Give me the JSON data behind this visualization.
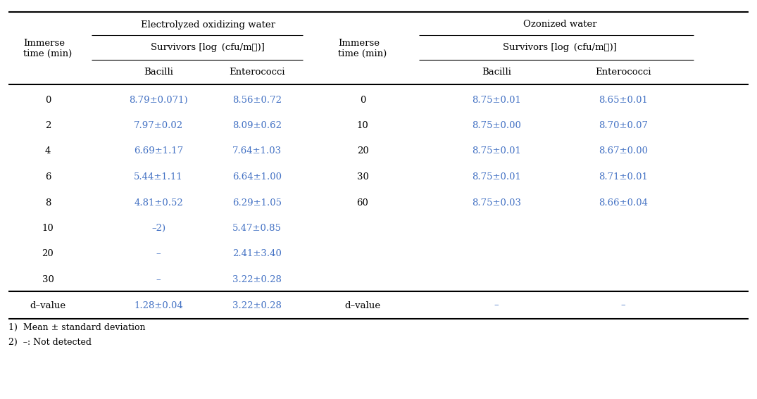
{
  "title_left": "Electrolyzed oxidizing water",
  "title_right": "Ozonized water",
  "survivors_label": "Survivors [log (cfu/mℓ)]",
  "row_header_left": "Immerse\ntime (min)",
  "row_header_right": "Immerse\ntime (min)",
  "eow_rows": [
    [
      "0",
      "8.79±0.071)",
      "8.56±0.72"
    ],
    [
      "2",
      "7.97±0.02",
      "8.09±0.62"
    ],
    [
      "4",
      "6.69±1.17",
      "7.64±1.03"
    ],
    [
      "6",
      "5.44±1.11",
      "6.64±1.00"
    ],
    [
      "8",
      "4.81±0.52",
      "6.29±1.05"
    ],
    [
      "10",
      "–2)",
      "5.47±0.85"
    ],
    [
      "20",
      "–",
      "2.41±3.40"
    ],
    [
      "30",
      "–",
      "3.22±0.28"
    ]
  ],
  "oz_rows": [
    [
      "0",
      "8.75±0.01",
      "8.65±0.01"
    ],
    [
      "10",
      "8.75±0.00",
      "8.70±0.07"
    ],
    [
      "20",
      "8.75±0.01",
      "8.67±0.00"
    ],
    [
      "30",
      "8.75±0.01",
      "8.71±0.01"
    ],
    [
      "60",
      "8.75±0.03",
      "8.66±0.04"
    ]
  ],
  "dvalue_left_label": "d–value",
  "dvalue_left_bacilli": "1.28±0.04",
  "dvalue_left_entero": "3.22±0.28",
  "dvalue_right_label": "d–value",
  "dvalue_right_bacilli": "–",
  "dvalue_right_entero": "–",
  "footnote1": "1)  Mean ± standard deviation",
  "footnote2": "2)  –: Not detected",
  "text_color": "#4472C4",
  "header_color": "#000000",
  "bg_color": "#ffffff",
  "font_size": 9.5
}
